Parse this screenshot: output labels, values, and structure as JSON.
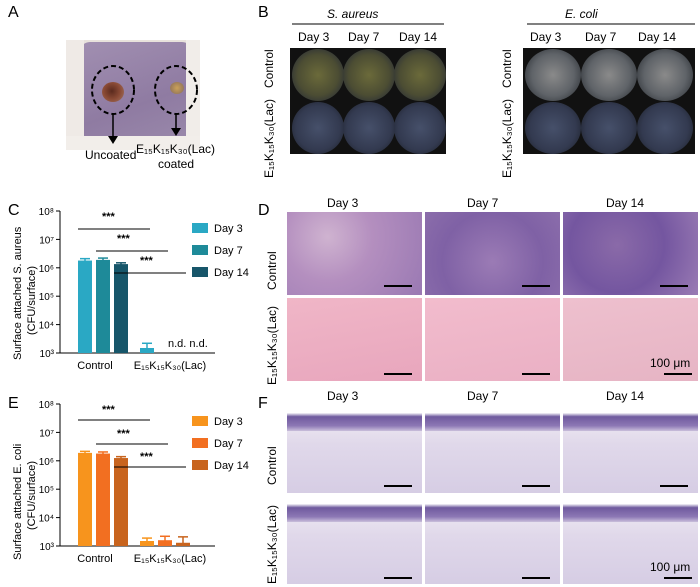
{
  "panel_letters": {
    "a": "A",
    "b": "B",
    "c": "C",
    "d": "D",
    "e": "E",
    "f": "F"
  },
  "panel_a": {
    "label_uncoated": "Uncoated",
    "label_coated_line1": "E₁₅K₁₅K₃₀(Lac)",
    "label_coated_line2": "coated"
  },
  "panel_b": {
    "group1": "S. aureus",
    "group2": "E. coli",
    "days": [
      "Day 3",
      "Day 7",
      "Day 14"
    ],
    "row_control": "Control",
    "row_coated": "E₁₅K₁₅K₃₀(Lac)"
  },
  "panel_c": {
    "ylabel_line1": "Surface attached S. aureus",
    "ylabel_line2": "(CFU/surface)",
    "nd_label": "n.d. n.d.",
    "significance": [
      "***",
      "***",
      "***"
    ]
  },
  "panel_e": {
    "ylabel_line1": "Surface attached E. coli",
    "ylabel_line2": "(CFU/surface)",
    "significance": [
      "***",
      "***",
      "***"
    ]
  },
  "panel_d": {
    "days": [
      "Day 3",
      "Day 7",
      "Day 14"
    ],
    "row_control": "Control",
    "row_coated": "E₁₅K₁₅K₃₀(Lac)",
    "scale_label": "100 μm"
  },
  "panel_f": {
    "days": [
      "Day 3",
      "Day 7",
      "Day 14"
    ],
    "row_control": "Control",
    "row_coated": "E₁₅K₁₅K₃₀(Lac)",
    "scale_label": "100 μm"
  },
  "chart_data": [
    {
      "type": "bar",
      "ylabel": "Surface attached S. aureus (CFU/surface)",
      "yscale": "log",
      "ylim": [
        1000,
        100000000
      ],
      "yticks": [
        "10³",
        "10⁴",
        "10⁵",
        "10⁶",
        "10⁷",
        "10⁸"
      ],
      "categories": [
        "Control",
        "E₁₅K₁₅K₃₀(Lac)"
      ],
      "series": [
        {
          "name": "Day 3",
          "color": "#2aa8c4",
          "values": [
            1800000,
            1500
          ],
          "errors": [
            300000,
            700
          ]
        },
        {
          "name": "Day 7",
          "color": "#1e8a99",
          "values": [
            1900000,
            null
          ],
          "errors": [
            300000,
            null
          ]
        },
        {
          "name": "Day 14",
          "color": "#17566a",
          "values": [
            1350000,
            null
          ],
          "errors": [
            150000,
            null
          ]
        }
      ],
      "legend_position": "top-right",
      "grid": false
    },
    {
      "type": "bar",
      "ylabel": "Surface attached E. coli (CFU/surface)",
      "yscale": "log",
      "ylim": [
        1000,
        100000000
      ],
      "yticks": [
        "10³",
        "10⁴",
        "10⁵",
        "10⁶",
        "10⁷",
        "10⁸"
      ],
      "categories": [
        "Control",
        "E₁₅K₁₅K₃₀(Lac)"
      ],
      "series": [
        {
          "name": "Day 3",
          "color": "#f7941d",
          "values": [
            1900000,
            1500
          ],
          "errors": [
            250000,
            400
          ]
        },
        {
          "name": "Day 7",
          "color": "#f26f21",
          "values": [
            1800000,
            1600
          ],
          "errors": [
            250000,
            600
          ]
        },
        {
          "name": "Day 14",
          "color": "#c8641e",
          "values": [
            1250000,
            1300
          ],
          "errors": [
            150000,
            800
          ]
        }
      ],
      "legend_position": "top-right",
      "grid": false
    }
  ]
}
